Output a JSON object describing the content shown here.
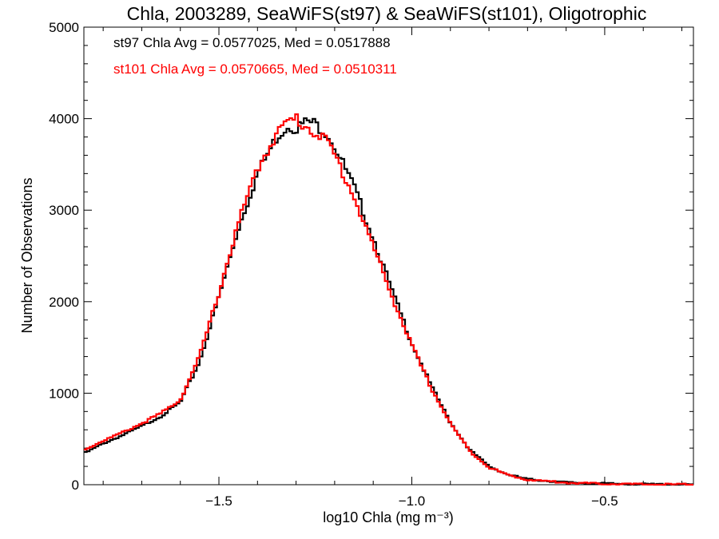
{
  "chart_data": {
    "type": "line",
    "step": true,
    "title": "Chla, 2003289, SeaWiFS(st97) & SeaWiFS(st101), Oligotrophic",
    "xlabel": "log10 Chla (mg m⁻³)",
    "ylabel": "Number of Observations",
    "xlim": [
      -1.85,
      -0.27
    ],
    "ylim": [
      0,
      5000
    ],
    "xticks": [
      -1.5,
      -1.0,
      -0.5
    ],
    "xtick_labels": [
      "−1.5",
      "−1.0",
      "−0.5"
    ],
    "yticks": [
      0,
      1000,
      2000,
      3000,
      4000,
      5000
    ],
    "ytick_labels": [
      "0",
      "1000",
      "2000",
      "3000",
      "4000",
      "5000"
    ],
    "grid": false,
    "annotations": [
      {
        "text": "st97 Chla Avg = 0.0577025, Med = 0.0517888",
        "color": "#000000"
      },
      {
        "text": "st101 Chla Avg = 0.0570665, Med = 0.0510311",
        "color": "#ff0000"
      }
    ],
    "series": [
      {
        "color": "#000000",
        "x": [
          -1.85,
          -1.8,
          -1.75,
          -1.7,
          -1.65,
          -1.6,
          -1.55,
          -1.5,
          -1.45,
          -1.4,
          -1.35,
          -1.32,
          -1.3,
          -1.27,
          -1.25,
          -1.22,
          -1.2,
          -1.15,
          -1.1,
          -1.05,
          -1.0,
          -0.95,
          -0.9,
          -0.85,
          -0.8,
          -0.75,
          -0.7,
          -0.6,
          -0.5,
          -0.4,
          -0.27
        ],
        "values": [
          340,
          450,
          540,
          640,
          750,
          900,
          1350,
          2050,
          2800,
          3400,
          3800,
          3930,
          3900,
          3970,
          3940,
          3850,
          3700,
          3250,
          2700,
          2100,
          1550,
          1080,
          680,
          380,
          200,
          110,
          60,
          25,
          12,
          5,
          2
        ]
      },
      {
        "color": "#ff0000",
        "x": [
          -1.85,
          -1.8,
          -1.75,
          -1.7,
          -1.65,
          -1.6,
          -1.55,
          -1.5,
          -1.45,
          -1.4,
          -1.35,
          -1.32,
          -1.3,
          -1.28,
          -1.25,
          -1.22,
          -1.2,
          -1.15,
          -1.1,
          -1.05,
          -1.0,
          -0.95,
          -0.9,
          -0.85,
          -0.8,
          -0.75,
          -0.7,
          -0.6,
          -0.5,
          -0.4,
          -0.27
        ],
        "values": [
          380,
          480,
          570,
          670,
          780,
          930,
          1400,
          2100,
          2850,
          3450,
          3850,
          3960,
          4000,
          3930,
          3860,
          3750,
          3600,
          3150,
          2600,
          2050,
          1520,
          1060,
          670,
          370,
          190,
          105,
          55,
          22,
          10,
          4,
          1
        ]
      }
    ]
  }
}
